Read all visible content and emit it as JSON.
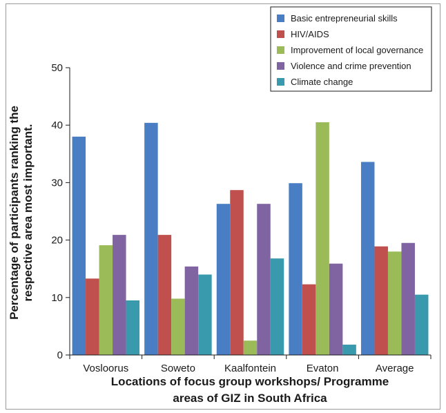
{
  "chart_data": {
    "type": "bar",
    "title": "",
    "ylabel_line1": "Percentage of participants ranking the",
    "ylabel_line2": "respective area most important.",
    "xlabel_line1": "Locations of focus group workshops/ Programme",
    "xlabel_line2": "areas of GIZ in South Africa",
    "ylim": [
      0,
      50
    ],
    "yticks": [
      "0",
      "10",
      "20",
      "30",
      "40",
      "50"
    ],
    "categories": [
      "Vosloorus",
      "Soweto",
      "Kaalfontein",
      "Evaton",
      "Average"
    ],
    "legend_position": "top-right",
    "grid": false,
    "series": [
      {
        "name": "Basic entrepreneurial skills",
        "color": "#4a7ec4",
        "values": [
          38.0,
          40.4,
          26.3,
          29.9,
          33.6
        ]
      },
      {
        "name": "HIV/AIDS",
        "color": "#c0504d",
        "values": [
          13.3,
          20.9,
          28.7,
          12.3,
          18.9
        ]
      },
      {
        "name": "Improvement of local governance",
        "color": "#9bbb59",
        "values": [
          19.1,
          9.8,
          2.5,
          40.5,
          18.0
        ]
      },
      {
        "name": "Violence and crime prevention",
        "color": "#8064a2",
        "values": [
          20.9,
          15.4,
          26.3,
          15.9,
          19.5
        ]
      },
      {
        "name": "Climate change",
        "color": "#3a9aad",
        "values": [
          9.5,
          14.0,
          16.8,
          1.8,
          10.5
        ]
      }
    ]
  }
}
